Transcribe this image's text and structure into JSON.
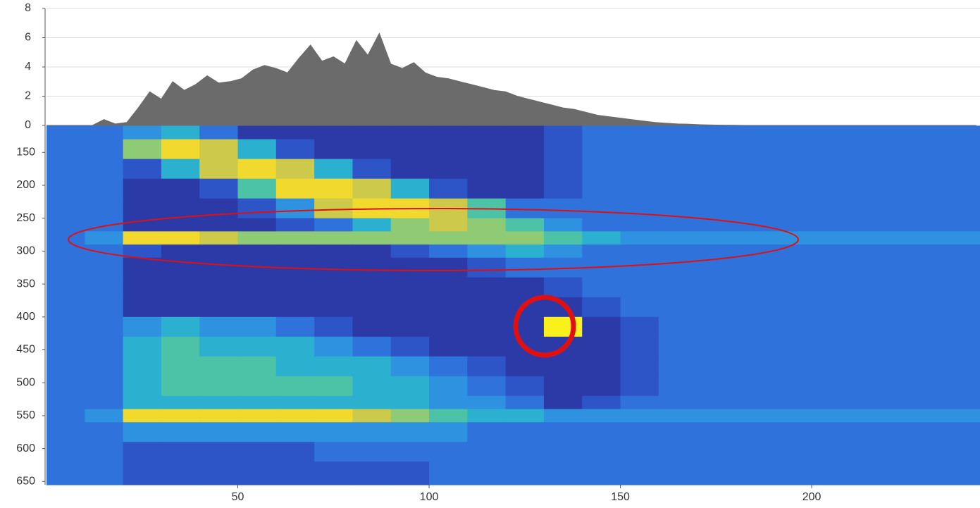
{
  "chart_data": [
    {
      "type": "area",
      "color": "#6b6b6b",
      "grid": true,
      "xlim": [
        0,
        244
      ],
      "ylim": [
        0,
        8
      ],
      "yticks": [
        0,
        2,
        4,
        6,
        8
      ],
      "x": [
        0,
        3,
        6,
        9,
        12,
        15,
        18,
        21,
        24,
        27,
        30,
        33,
        36,
        39,
        42,
        45,
        48,
        51,
        54,
        57,
        60,
        63,
        66,
        69,
        72,
        75,
        78,
        81,
        84,
        87,
        90,
        93,
        96,
        99,
        102,
        105,
        108,
        111,
        114,
        117,
        120,
        123,
        126,
        129,
        132,
        135,
        138,
        141,
        144,
        147,
        150,
        153,
        156,
        159,
        162,
        165,
        168,
        171,
        174,
        177,
        180,
        183,
        186,
        189,
        192,
        195,
        198,
        201,
        204,
        207,
        210,
        213,
        216,
        219,
        222,
        225,
        228,
        231,
        234,
        237,
        240,
        243
      ],
      "values": [
        0,
        0,
        0,
        0,
        0,
        0.4,
        0.1,
        0.2,
        1.2,
        2.3,
        1.8,
        3.0,
        2.4,
        2.8,
        3.4,
        2.9,
        3.0,
        3.2,
        3.8,
        4.1,
        3.9,
        3.6,
        4.6,
        5.5,
        4.4,
        4.7,
        4.2,
        5.8,
        4.8,
        6.3,
        4.2,
        3.9,
        4.3,
        3.6,
        3.3,
        3.2,
        3.0,
        2.8,
        2.6,
        2.4,
        2.3,
        2.0,
        1.8,
        1.6,
        1.4,
        1.2,
        1.1,
        0.9,
        0.7,
        0.6,
        0.5,
        0.4,
        0.3,
        0.2,
        0.15,
        0.1,
        0.08,
        0.05,
        0.03,
        0.02,
        0.01,
        0,
        0,
        0,
        0,
        0,
        0,
        0,
        0,
        0,
        0,
        0,
        0,
        0,
        0,
        0,
        0,
        0,
        0,
        0,
        0,
        0
      ]
    },
    {
      "type": "heatmap",
      "xlim": [
        0,
        244
      ],
      "xticks": [
        50,
        100,
        150,
        200
      ],
      "ylim": [
        655,
        109
      ],
      "yticks": [
        150,
        200,
        250,
        300,
        350,
        400,
        450,
        500,
        550,
        600,
        650
      ],
      "xbins": [
        0,
        10,
        20,
        30,
        40,
        50,
        60,
        70,
        80,
        90,
        100,
        110,
        120,
        130,
        140,
        150,
        160,
        170,
        180,
        190,
        200,
        210,
        220,
        230,
        244
      ],
      "ybins": [
        109,
        130,
        160,
        190,
        220,
        250,
        270,
        290,
        310,
        340,
        370,
        400,
        430,
        460,
        490,
        520,
        540,
        560,
        590,
        620,
        655
      ],
      "zlim": [
        0,
        10
      ],
      "colormap": [
        "#2a2a8f",
        "#2c3aa8",
        "#2e55c8",
        "#2f72dc",
        "#2f92e0",
        "#2bb0d0",
        "#4cc3a6",
        "#8fcb74",
        "#cdc94a",
        "#f2d92e",
        "#f9f01c"
      ],
      "z": [
        [
          3,
          3,
          4,
          5,
          3,
          1,
          1,
          1,
          1,
          1,
          1,
          1,
          1,
          2,
          3,
          3,
          3,
          3,
          3,
          3,
          3,
          3,
          3,
          3
        ],
        [
          3,
          3,
          7,
          9,
          8,
          5,
          2,
          1,
          1,
          1,
          1,
          1,
          1,
          2,
          3,
          3,
          3,
          3,
          3,
          3,
          3,
          3,
          3,
          3
        ],
        [
          3,
          3,
          2,
          5,
          8,
          9,
          8,
          5,
          2,
          1,
          1,
          1,
          1,
          2,
          3,
          3,
          3,
          3,
          3,
          3,
          3,
          3,
          3,
          3
        ],
        [
          3,
          3,
          1,
          1,
          2,
          6,
          9,
          9,
          8,
          5,
          2,
          1,
          1,
          2,
          3,
          3,
          3,
          3,
          3,
          3,
          3,
          3,
          3,
          3
        ],
        [
          3,
          3,
          1,
          1,
          1,
          2,
          4,
          8,
          9,
          9,
          8,
          6,
          3,
          3,
          3,
          3,
          3,
          3,
          3,
          3,
          3,
          3,
          3,
          3
        ],
        [
          3,
          3,
          1,
          1,
          1,
          1,
          2,
          3,
          5,
          7,
          8,
          7,
          6,
          4,
          3,
          3,
          3,
          3,
          3,
          3,
          3,
          3,
          3,
          3
        ],
        [
          3,
          4,
          9,
          9,
          8,
          7,
          7,
          7,
          7,
          7,
          7,
          7,
          7,
          6,
          5,
          4,
          4,
          4,
          4,
          4,
          4,
          4,
          4,
          4
        ],
        [
          3,
          3,
          2,
          1,
          1,
          1,
          1,
          1,
          1,
          2,
          3,
          4,
          5,
          4,
          3,
          3,
          3,
          3,
          3,
          3,
          3,
          3,
          3,
          3
        ],
        [
          3,
          3,
          1,
          1,
          1,
          1,
          1,
          1,
          1,
          1,
          1,
          2,
          3,
          3,
          3,
          3,
          3,
          3,
          3,
          3,
          3,
          3,
          3,
          3
        ],
        [
          3,
          3,
          1,
          1,
          1,
          1,
          1,
          1,
          1,
          1,
          1,
          1,
          1,
          2,
          3,
          3,
          3,
          3,
          3,
          3,
          3,
          3,
          3,
          3
        ],
        [
          3,
          3,
          1,
          1,
          1,
          1,
          1,
          1,
          1,
          1,
          1,
          1,
          1,
          1,
          2,
          3,
          3,
          3,
          3,
          3,
          3,
          3,
          3,
          3
        ],
        [
          3,
          3,
          4,
          5,
          4,
          4,
          3,
          2,
          1,
          1,
          1,
          1,
          1,
          10,
          1,
          2,
          3,
          3,
          3,
          3,
          3,
          3,
          3,
          3
        ],
        [
          3,
          3,
          5,
          6,
          5,
          5,
          5,
          4,
          3,
          2,
          1,
          1,
          1,
          1,
          1,
          2,
          3,
          3,
          3,
          3,
          3,
          3,
          3,
          3
        ],
        [
          3,
          3,
          5,
          6,
          6,
          6,
          5,
          5,
          5,
          4,
          3,
          2,
          1,
          1,
          1,
          2,
          3,
          3,
          3,
          3,
          3,
          3,
          3,
          3
        ],
        [
          3,
          3,
          5,
          6,
          6,
          6,
          6,
          6,
          5,
          5,
          4,
          3,
          2,
          1,
          1,
          2,
          3,
          3,
          3,
          3,
          3,
          3,
          3,
          3
        ],
        [
          3,
          3,
          5,
          5,
          5,
          5,
          5,
          5,
          5,
          5,
          4,
          4,
          3,
          1,
          2,
          3,
          3,
          3,
          3,
          3,
          3,
          3,
          3,
          3
        ],
        [
          3,
          4,
          9,
          9,
          9,
          9,
          9,
          9,
          8,
          7,
          6,
          5,
          5,
          4,
          4,
          4,
          4,
          4,
          4,
          4,
          4,
          4,
          4,
          4
        ],
        [
          3,
          3,
          4,
          4,
          4,
          4,
          4,
          4,
          4,
          4,
          4,
          3,
          3,
          3,
          3,
          3,
          3,
          3,
          3,
          3,
          3,
          3,
          3,
          3
        ],
        [
          3,
          3,
          2,
          2,
          2,
          2,
          2,
          3,
          3,
          3,
          3,
          3,
          3,
          3,
          3,
          3,
          3,
          3,
          3,
          3,
          3,
          3,
          3,
          3
        ],
        [
          3,
          3,
          2,
          2,
          2,
          2,
          2,
          2,
          2,
          2,
          3,
          3,
          3,
          3,
          3,
          3,
          3,
          3,
          3,
          3,
          3,
          3,
          3,
          3
        ]
      ]
    }
  ]
}
